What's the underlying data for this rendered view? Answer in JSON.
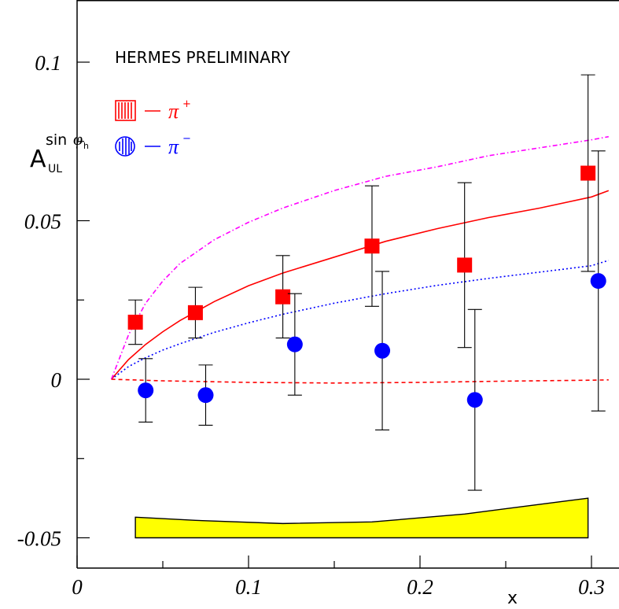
{
  "chart_data": {
    "type": "scatter",
    "title": "HERMES PRELIMINARY",
    "xlabel": "x",
    "ylabel_main": "A",
    "ylabel_sub": "UL",
    "ylabel_sup_text": "sin",
    "ylabel_sup_phi": "φ",
    "ylabel_sup_phi_sub": "h",
    "xlim": [
      0,
      0.31
    ],
    "ylim": [
      -0.06,
      0.12
    ],
    "x_ticks": [
      0,
      0.1,
      0.2,
      0.3
    ],
    "x_tick_labels": [
      "0",
      "0.1",
      "0.2",
      "0.3"
    ],
    "y_ticks": [
      -0.05,
      0,
      0.05,
      0.1
    ],
    "y_tick_labels": [
      "-0.05",
      "0",
      "0.05",
      "0.1"
    ],
    "grid": false,
    "legend_position": "top-left",
    "series": [
      {
        "name": "π⁺",
        "legend_symbol": "π",
        "legend_sup": "+",
        "color": "#ff0000",
        "marker": "square",
        "x": [
          0.034,
          0.069,
          0.12,
          0.172,
          0.226,
          0.298
        ],
        "y": [
          0.018,
          0.021,
          0.026,
          0.042,
          0.036,
          0.065
        ],
        "err": [
          0.007,
          0.008,
          0.013,
          0.019,
          0.026,
          0.031
        ]
      },
      {
        "name": "π⁻",
        "legend_symbol": "π",
        "legend_sup": "−",
        "color": "#0000ff",
        "marker": "circle",
        "x": [
          0.04,
          0.075,
          0.127,
          0.178,
          0.232,
          0.304
        ],
        "y": [
          -0.0035,
          -0.005,
          0.011,
          0.009,
          -0.0065,
          0.031
        ],
        "err": [
          0.01,
          0.0095,
          0.016,
          0.025,
          0.0285,
          0.041
        ]
      }
    ],
    "curves": [
      {
        "style": "solid",
        "color": "#ff0000",
        "x": [
          0.02,
          0.03,
          0.04,
          0.05,
          0.06,
          0.08,
          0.1,
          0.12,
          0.15,
          0.18,
          0.21,
          0.24,
          0.27,
          0.3,
          0.31
        ],
        "y": [
          0,
          0.0062,
          0.011,
          0.015,
          0.0185,
          0.0245,
          0.0295,
          0.0335,
          0.0385,
          0.0435,
          0.0475,
          0.051,
          0.054,
          0.0575,
          0.0595
        ]
      },
      {
        "style": "dotted",
        "color": "#0000ff",
        "x": [
          0.02,
          0.03,
          0.04,
          0.05,
          0.06,
          0.08,
          0.1,
          0.12,
          0.15,
          0.18,
          0.21,
          0.24,
          0.27,
          0.3,
          0.31
        ],
        "y": [
          0,
          0.004,
          0.0068,
          0.0092,
          0.0112,
          0.0148,
          0.0178,
          0.0205,
          0.024,
          0.027,
          0.0296,
          0.0318,
          0.0338,
          0.0358,
          0.0375
        ]
      },
      {
        "style": "dashdot",
        "color": "#ff00ff",
        "x": [
          0.02,
          0.03,
          0.04,
          0.05,
          0.06,
          0.08,
          0.1,
          0.12,
          0.15,
          0.18,
          0.21,
          0.24,
          0.27,
          0.3,
          0.31
        ],
        "y": [
          0,
          0.014,
          0.024,
          0.031,
          0.0365,
          0.044,
          0.0495,
          0.054,
          0.0595,
          0.064,
          0.067,
          0.0705,
          0.073,
          0.0755,
          0.0765
        ]
      },
      {
        "style": "dashed",
        "color": "#ff0000",
        "x": [
          0.02,
          0.05,
          0.1,
          0.15,
          0.2,
          0.25,
          0.3,
          0.31
        ],
        "y": [
          0,
          -0.0005,
          -0.001,
          -0.0012,
          -0.001,
          -0.0006,
          -0.0003,
          -0.0002
        ]
      }
    ],
    "systematic_band": {
      "color": "#ffff00",
      "x": [
        0.034,
        0.069,
        0.12,
        0.172,
        0.226,
        0.298
      ],
      "top": [
        -0.0435,
        -0.0445,
        -0.0455,
        -0.045,
        -0.0425,
        -0.0375
      ],
      "bottom": -0.05
    }
  }
}
